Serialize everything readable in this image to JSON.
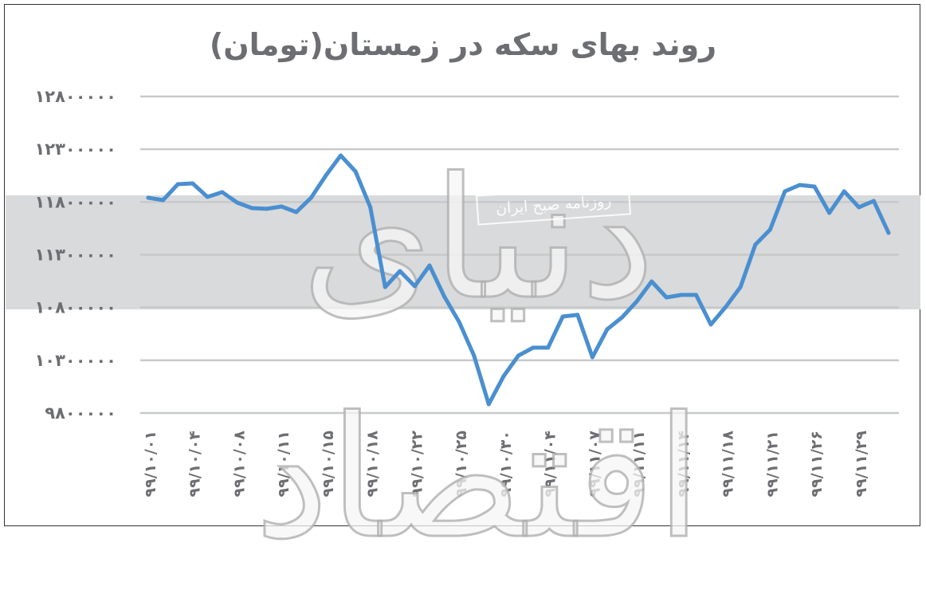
{
  "chart_data": {
    "type": "line",
    "title": "روند بهای سکه در زمستان(تومان)",
    "xlabel": "",
    "ylabel": "",
    "ylim": [
      9800000,
      12800000
    ],
    "grid": true,
    "yticks": [
      {
        "value": 12800000,
        "label": "۱۲۸۰۰۰۰۰"
      },
      {
        "value": 12300000,
        "label": "۱۲۳۰۰۰۰۰"
      },
      {
        "value": 11800000,
        "label": "۱۱۸۰۰۰۰۰"
      },
      {
        "value": 11300000,
        "label": "۱۱۳۰۰۰۰۰"
      },
      {
        "value": 10800000,
        "label": "۱۰۸۰۰۰۰۰"
      },
      {
        "value": 10300000,
        "label": "۱۰۳۰۰۰۰۰"
      },
      {
        "value": 9800000,
        "label": "۹۸۰۰۰۰۰"
      }
    ],
    "xticks": [
      {
        "index": 0,
        "label": "۹۹/۱۰/۰۱"
      },
      {
        "index": 3,
        "label": "۹۹/۱۰/۰۴"
      },
      {
        "index": 6,
        "label": "۹۹/۱۰/۰۸"
      },
      {
        "index": 9,
        "label": "۹۹/۱۰/۱۱"
      },
      {
        "index": 12,
        "label": "۹۹/۱۰/۱۵"
      },
      {
        "index": 15,
        "label": "۹۹/۱۰/۱۸"
      },
      {
        "index": 18,
        "label": "۹۹/۱۰/۲۲"
      },
      {
        "index": 21,
        "label": "۹۹/۱۰/۲۵"
      },
      {
        "index": 24,
        "label": "۹۹/۱۰/۳۰"
      },
      {
        "index": 27,
        "label": "۹۹/۱۱/۰۴"
      },
      {
        "index": 30,
        "label": "۹۹/۱۱/۰۷"
      },
      {
        "index": 33,
        "label": "۹۹/۱۱/۱۱"
      },
      {
        "index": 36,
        "label": "۹۹/۱۱/۱۴"
      },
      {
        "index": 39,
        "label": "۹۹/۱۱/۱۸"
      },
      {
        "index": 42,
        "label": "۹۹/۱۱/۲۱"
      },
      {
        "index": 45,
        "label": "۹۹/۱۱/۲۶"
      },
      {
        "index": 48,
        "label": "۹۹/۱۱/۲۹"
      }
    ],
    "series": [
      {
        "name": "بهای سکه",
        "color": "#4a8fd0",
        "values": [
          11840000,
          11818000,
          11969000,
          11976000,
          11848000,
          11893000,
          11795000,
          11742000,
          11735000,
          11757000,
          11704000,
          11840000,
          12052000,
          12241000,
          12090000,
          11750000,
          10994000,
          11145000,
          11002000,
          11198000,
          10903000,
          10662000,
          10344000,
          9883000,
          10148000,
          10344000,
          10420000,
          10420000,
          10714000,
          10730000,
          10329000,
          10594000,
          10707000,
          10858000,
          11047000,
          10896000,
          10919000,
          10919000,
          10639000,
          10805000,
          10994000,
          11395000,
          11538000,
          11901000,
          11961000,
          11946000,
          11697000,
          11901000,
          11750000,
          11810000,
          11508000
        ]
      }
    ]
  },
  "watermark": {
    "caption": "روزنامه صبح ایران",
    "logo_text": "دنیای اقتصاد"
  }
}
